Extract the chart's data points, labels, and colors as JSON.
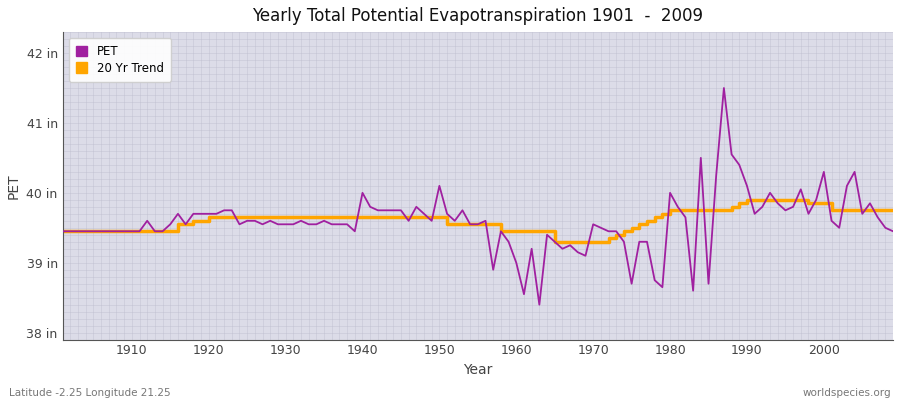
{
  "title": "Yearly Total Potential Evapotranspiration 1901  -  2009",
  "xlabel": "Year",
  "ylabel": "PET",
  "bottom_left": "Latitude -2.25 Longitude 21.25",
  "bottom_right": "worldspecies.org",
  "pet_color": "#A020A0",
  "trend_color": "#FFA500",
  "plot_bg_color": "#DCDCE8",
  "fig_bg_color": "#FFFFFF",
  "grid_color": "#FFFFFF",
  "ylim": [
    37.9,
    42.3
  ],
  "yticks": [
    38,
    39,
    40,
    41,
    42
  ],
  "ytick_labels": [
    "38 in",
    "39 in",
    "40 in",
    "41 in",
    "42 in"
  ],
  "xlim": [
    1901,
    2009
  ],
  "xticks": [
    1910,
    1920,
    1930,
    1940,
    1950,
    1960,
    1970,
    1980,
    1990,
    2000
  ],
  "years": [
    1901,
    1902,
    1903,
    1904,
    1905,
    1906,
    1907,
    1908,
    1909,
    1910,
    1911,
    1912,
    1913,
    1914,
    1915,
    1916,
    1917,
    1918,
    1919,
    1920,
    1921,
    1922,
    1923,
    1924,
    1925,
    1926,
    1927,
    1928,
    1929,
    1930,
    1931,
    1932,
    1933,
    1934,
    1935,
    1936,
    1937,
    1938,
    1939,
    1940,
    1941,
    1942,
    1943,
    1944,
    1945,
    1946,
    1947,
    1948,
    1949,
    1950,
    1951,
    1952,
    1953,
    1954,
    1955,
    1956,
    1957,
    1958,
    1959,
    1960,
    1961,
    1962,
    1963,
    1964,
    1965,
    1966,
    1967,
    1968,
    1969,
    1970,
    1971,
    1972,
    1973,
    1974,
    1975,
    1976,
    1977,
    1978,
    1979,
    1980,
    1981,
    1982,
    1983,
    1984,
    1985,
    1986,
    1987,
    1988,
    1989,
    1990,
    1991,
    1992,
    1993,
    1994,
    1995,
    1996,
    1997,
    1998,
    1999,
    2000,
    2001,
    2002,
    2003,
    2004,
    2005,
    2006,
    2007,
    2008,
    2009
  ],
  "pet_values": [
    39.45,
    39.45,
    39.45,
    39.45,
    39.45,
    39.45,
    39.45,
    39.45,
    39.45,
    39.45,
    39.45,
    39.6,
    39.45,
    39.45,
    39.55,
    39.7,
    39.55,
    39.7,
    39.7,
    39.7,
    39.7,
    39.75,
    39.75,
    39.55,
    39.6,
    39.6,
    39.55,
    39.6,
    39.55,
    39.55,
    39.55,
    39.6,
    39.55,
    39.55,
    39.6,
    39.55,
    39.55,
    39.55,
    39.45,
    40.0,
    39.8,
    39.75,
    39.75,
    39.75,
    39.75,
    39.6,
    39.8,
    39.7,
    39.6,
    40.1,
    39.7,
    39.6,
    39.75,
    39.55,
    39.55,
    39.6,
    38.9,
    39.45,
    39.3,
    39.0,
    38.55,
    39.2,
    38.4,
    39.4,
    39.3,
    39.2,
    39.25,
    39.15,
    39.1,
    39.55,
    39.5,
    39.45,
    39.45,
    39.3,
    38.7,
    39.3,
    39.3,
    38.75,
    38.65,
    40.0,
    39.8,
    39.65,
    38.6,
    40.5,
    38.7,
    40.25,
    41.5,
    40.55,
    40.4,
    40.1,
    39.7,
    39.8,
    40.0,
    39.85,
    39.75,
    39.8,
    40.05,
    39.7,
    39.9,
    40.3,
    39.6,
    39.5,
    40.1,
    40.3,
    39.7,
    39.85,
    39.65,
    39.5,
    39.45
  ],
  "trend_values": [
    39.45,
    39.45,
    39.45,
    39.45,
    39.45,
    39.45,
    39.45,
    39.45,
    39.45,
    39.45,
    39.45,
    39.45,
    39.45,
    39.45,
    39.45,
    39.55,
    39.55,
    39.6,
    39.6,
    39.65,
    39.65,
    39.65,
    39.65,
    39.65,
    39.65,
    39.65,
    39.65,
    39.65,
    39.65,
    39.65,
    39.65,
    39.65,
    39.65,
    39.65,
    39.65,
    39.65,
    39.65,
    39.65,
    39.65,
    39.65,
    39.65,
    39.65,
    39.65,
    39.65,
    39.65,
    39.65,
    39.65,
    39.65,
    39.65,
    39.65,
    39.55,
    39.55,
    39.55,
    39.55,
    39.55,
    39.55,
    39.55,
    39.45,
    39.45,
    39.45,
    39.45,
    39.45,
    39.45,
    39.45,
    39.3,
    39.3,
    39.3,
    39.3,
    39.3,
    39.3,
    39.3,
    39.35,
    39.4,
    39.45,
    39.5,
    39.55,
    39.6,
    39.65,
    39.7,
    39.75,
    39.75,
    39.75,
    39.75,
    39.75,
    39.75,
    39.75,
    39.75,
    39.8,
    39.85,
    39.9,
    39.9,
    39.9,
    39.9,
    39.9,
    39.9,
    39.9,
    39.9,
    39.85,
    39.85,
    39.85,
    39.75,
    39.75,
    39.75,
    39.75,
    39.75,
    39.75,
    39.75,
    39.75,
    39.75
  ]
}
